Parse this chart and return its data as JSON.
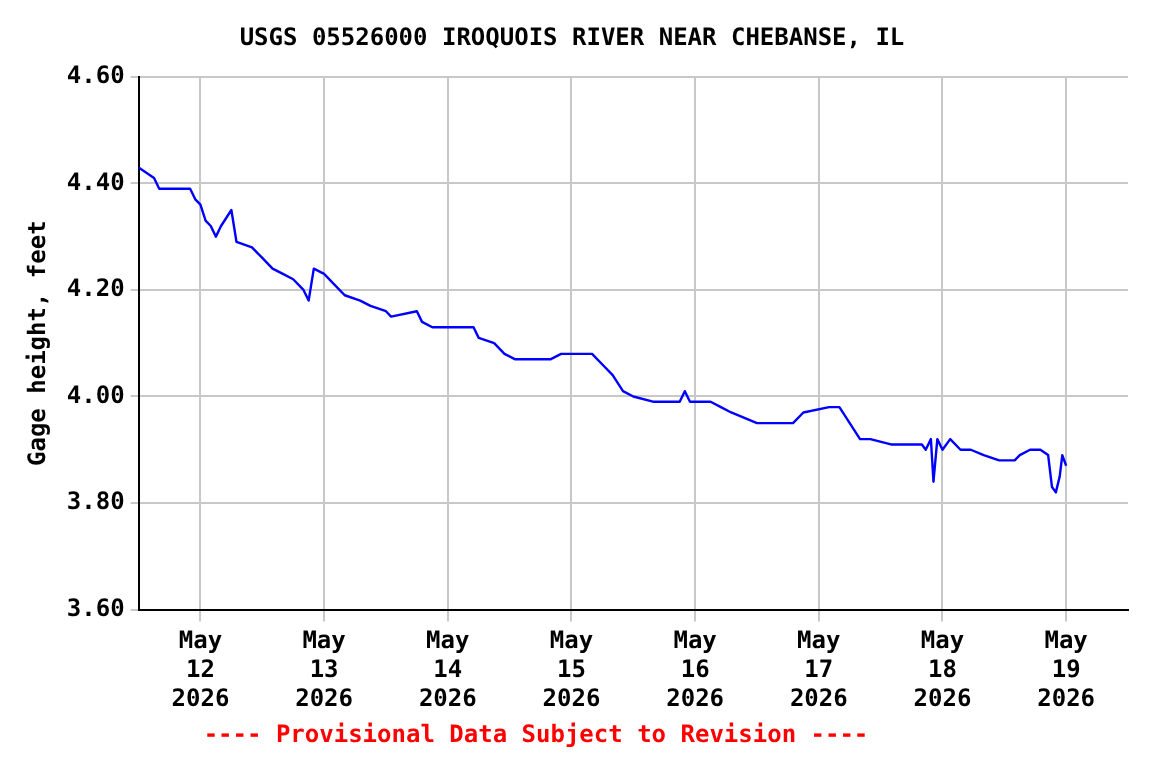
{
  "chart_data": {
    "type": "line",
    "title": "USGS 05526000 IROQUOIS RIVER NEAR CHEBANSE, IL",
    "ylabel": "Gage height, feet",
    "annotations": [
      "---- Provisional Data Subject to Revision ----"
    ],
    "x": [
      "2026-05-11T12:00",
      "2026-05-11T15:00",
      "2026-05-11T16:00",
      "2026-05-11T22:00",
      "2026-05-11T23:00",
      "2026-05-12T00:00",
      "2026-05-12T01:00",
      "2026-05-12T02:00",
      "2026-05-12T03:00",
      "2026-05-12T04:00",
      "2026-05-12T06:00",
      "2026-05-12T07:00",
      "2026-05-12T10:00",
      "2026-05-12T12:00",
      "2026-05-12T14:00",
      "2026-05-12T16:00",
      "2026-05-12T18:00",
      "2026-05-12T20:00",
      "2026-05-12T21:00",
      "2026-05-12T22:00",
      "2026-05-13T00:00",
      "2026-05-13T02:00",
      "2026-05-13T04:00",
      "2026-05-13T07:00",
      "2026-05-13T09:00",
      "2026-05-13T12:00",
      "2026-05-13T13:00",
      "2026-05-13T18:00",
      "2026-05-13T19:00",
      "2026-05-13T21:00",
      "2026-05-13T23:00",
      "2026-05-14T03:00",
      "2026-05-14T05:00",
      "2026-05-14T06:00",
      "2026-05-14T09:00",
      "2026-05-14T11:00",
      "2026-05-14T13:00",
      "2026-05-14T20:00",
      "2026-05-14T22:00",
      "2026-05-15T04:00",
      "2026-05-15T06:00",
      "2026-05-15T08:00",
      "2026-05-15T10:00",
      "2026-05-15T12:00",
      "2026-05-15T16:00",
      "2026-05-15T21:00",
      "2026-05-15T22:00",
      "2026-05-15T23:00",
      "2026-05-16T03:00",
      "2026-05-16T05:00",
      "2026-05-16T07:00",
      "2026-05-16T12:00",
      "2026-05-16T19:00",
      "2026-05-16T21:00",
      "2026-05-17T02:00",
      "2026-05-17T04:00",
      "2026-05-17T06:00",
      "2026-05-17T08:00",
      "2026-05-17T10:00",
      "2026-05-17T14:00",
      "2026-05-17T20:00",
      "2026-05-17T20:45",
      "2026-05-17T21:45",
      "2026-05-17T22:15",
      "2026-05-17T23:00",
      "2026-05-18T00:00",
      "2026-05-18T01:30",
      "2026-05-18T03:30",
      "2026-05-18T05:30",
      "2026-05-18T08:00",
      "2026-05-18T11:00",
      "2026-05-18T14:00",
      "2026-05-18T15:00",
      "2026-05-18T17:00",
      "2026-05-18T19:00",
      "2026-05-18T20:30",
      "2026-05-18T21:15",
      "2026-05-18T22:00",
      "2026-05-18T22:45",
      "2026-05-18T23:15",
      "2026-05-19T00:00"
    ],
    "series": [
      {
        "color": "#0000ff",
        "values": [
          4.43,
          4.41,
          4.39,
          4.39,
          4.37,
          4.36,
          4.33,
          4.32,
          4.3,
          4.32,
          4.35,
          4.29,
          4.28,
          4.26,
          4.24,
          4.23,
          4.22,
          4.2,
          4.18,
          4.24,
          4.23,
          4.21,
          4.19,
          4.18,
          4.17,
          4.16,
          4.15,
          4.16,
          4.14,
          4.13,
          4.13,
          4.13,
          4.13,
          4.11,
          4.1,
          4.08,
          4.07,
          4.07,
          4.08,
          4.08,
          4.06,
          4.04,
          4.01,
          4.0,
          3.99,
          3.99,
          4.01,
          3.99,
          3.99,
          3.98,
          3.97,
          3.95,
          3.95,
          3.97,
          3.98,
          3.98,
          3.95,
          3.92,
          3.92,
          3.91,
          3.91,
          3.9,
          3.92,
          3.84,
          3.92,
          3.9,
          3.92,
          3.9,
          3.9,
          3.89,
          3.88,
          3.88,
          3.89,
          3.9,
          3.9,
          3.89,
          3.83,
          3.82,
          3.85,
          3.89,
          3.87
        ]
      }
    ],
    "xlim": [
      "2026-05-11T12:00",
      "2026-05-19T12:00"
    ],
    "xticks": [
      {
        "value": "2026-05-12",
        "label": "May\n12\n2026"
      },
      {
        "value": "2026-05-13",
        "label": "May\n13\n2026"
      },
      {
        "value": "2026-05-14",
        "label": "May\n14\n2026"
      },
      {
        "value": "2026-05-15",
        "label": "May\n15\n2026"
      },
      {
        "value": "2026-05-16",
        "label": "May\n16\n2026"
      },
      {
        "value": "2026-05-17",
        "label": "May\n17\n2026"
      },
      {
        "value": "2026-05-18",
        "label": "May\n18\n2026"
      },
      {
        "value": "2026-05-19",
        "label": "May\n19\n2026"
      }
    ],
    "ylim": [
      3.6,
      4.6
    ],
    "yticks": [
      {
        "value": 3.6,
        "label": "3.60"
      },
      {
        "value": 3.8,
        "label": "3.80"
      },
      {
        "value": 4.0,
        "label": "4.00"
      },
      {
        "value": 4.2,
        "label": "4.20"
      },
      {
        "value": 4.4,
        "label": "4.40"
      },
      {
        "value": 4.6,
        "label": "4.60"
      }
    ],
    "grid": true,
    "legend": false,
    "marker": "none",
    "line_style": "solid"
  }
}
